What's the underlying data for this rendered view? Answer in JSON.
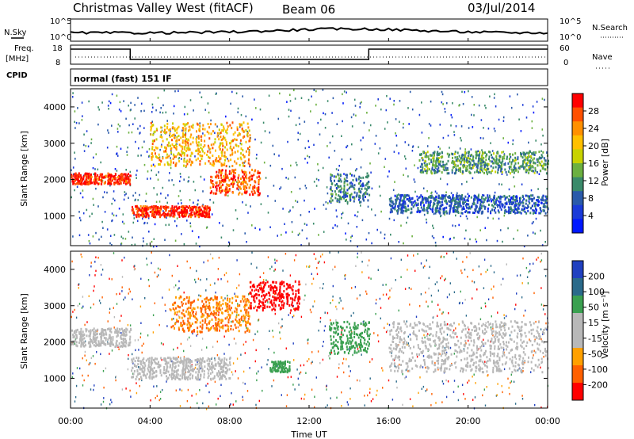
{
  "header": {
    "station": "Christmas Valley West (fitACF)",
    "beam": "Beam 06",
    "date": "03/Jul/2014"
  },
  "strip_labels": {
    "nsky": "N.Sky",
    "nsearch": "N.Search",
    "freq": "Freq.",
    "freq_unit": "[MHz]",
    "nave": "Nave",
    "cpid": "CPID",
    "mode": "normal (fast) 151 IF"
  },
  "noise_ticks": [
    "10^5",
    "10^0"
  ],
  "freq_ticks": [
    "18",
    "8"
  ],
  "nave_ticks": [
    "60",
    "0"
  ],
  "x_axis": {
    "label": "Time UT",
    "ticks": [
      "00:00",
      "04:00",
      "08:00",
      "12:00",
      "16:00",
      "20:00",
      "00:00"
    ]
  },
  "power_panel": {
    "ylabel": "Slant Range [km]",
    "yticks": [
      "4000",
      "3000",
      "2000",
      "1000"
    ],
    "cbar_label": "Power [dB]",
    "cbar_ticks": [
      "28",
      "24",
      "20",
      "16",
      "12",
      "8",
      "4"
    ],
    "cbar_colors": [
      "#ff0000",
      "#ff5000",
      "#ff9000",
      "#ffc000",
      "#c8d200",
      "#6cb040",
      "#3a8a6a",
      "#2a5aaa",
      "#1a3ad8",
      "#0018ff"
    ]
  },
  "velocity_panel": {
    "ylabel": "Slant Range [km]",
    "yticks": [
      "4000",
      "3000",
      "2000",
      "1000"
    ],
    "cbar_label": "Velocity [m s⁻¹]",
    "cbar_ticks": [
      "200",
      "100",
      "50",
      "15",
      "-15",
      "-50",
      "-100",
      "-200"
    ],
    "cbar_colors": [
      "#2040c0",
      "#2a6a8a",
      "#3aa050",
      "#b8b8b8",
      "#b8b8b8",
      "#ffa000",
      "#ff6000",
      "#ff0000"
    ]
  },
  "chart_data": {
    "type": "heatmap",
    "x_range_hours": [
      0,
      24
    ],
    "y_range_km": [
      180,
      4500
    ],
    "power_bands": [
      {
        "start_h": 0.0,
        "end_h": 3.0,
        "range_km": [
          1900,
          2200
        ],
        "power_db": 26
      },
      {
        "start_h": 3.0,
        "end_h": 7.0,
        "range_km": [
          1000,
          1300
        ],
        "power_db": 26
      },
      {
        "start_h": 7.0,
        "end_h": 9.5,
        "range_km": [
          1600,
          2300
        ],
        "power_db": 24
      },
      {
        "start_h": 4.0,
        "end_h": 9.0,
        "range_km": [
          2400,
          3600
        ],
        "power_db": 20
      },
      {
        "start_h": 13.0,
        "end_h": 15.0,
        "range_km": [
          1400,
          2200
        ],
        "power_db": 10
      },
      {
        "start_h": 16.0,
        "end_h": 24.0,
        "range_km": [
          1100,
          1600
        ],
        "power_db": 8
      },
      {
        "start_h": 17.5,
        "end_h": 24.0,
        "range_km": [
          2200,
          2800
        ],
        "power_db": 12
      }
    ],
    "velocity_bands": [
      {
        "start_h": 0.0,
        "end_h": 3.0,
        "range_km": [
          1900,
          2400
        ],
        "velocity": 0
      },
      {
        "start_h": 3.0,
        "end_h": 8.0,
        "range_km": [
          1000,
          1600
        ],
        "velocity": 0
      },
      {
        "start_h": 5.0,
        "end_h": 9.0,
        "range_km": [
          2300,
          3300
        ],
        "velocity": -50
      },
      {
        "start_h": 9.0,
        "end_h": 11.5,
        "range_km": [
          2900,
          3700
        ],
        "velocity": -200
      },
      {
        "start_h": 10.0,
        "end_h": 11.0,
        "range_km": [
          1200,
          1500
        ],
        "velocity": 50
      },
      {
        "start_h": 13.0,
        "end_h": 15.0,
        "range_km": [
          1700,
          2600
        ],
        "velocity": 50
      },
      {
        "start_h": 16.0,
        "end_h": 24.0,
        "range_km": [
          1200,
          2600
        ],
        "velocity": 0
      }
    ]
  }
}
